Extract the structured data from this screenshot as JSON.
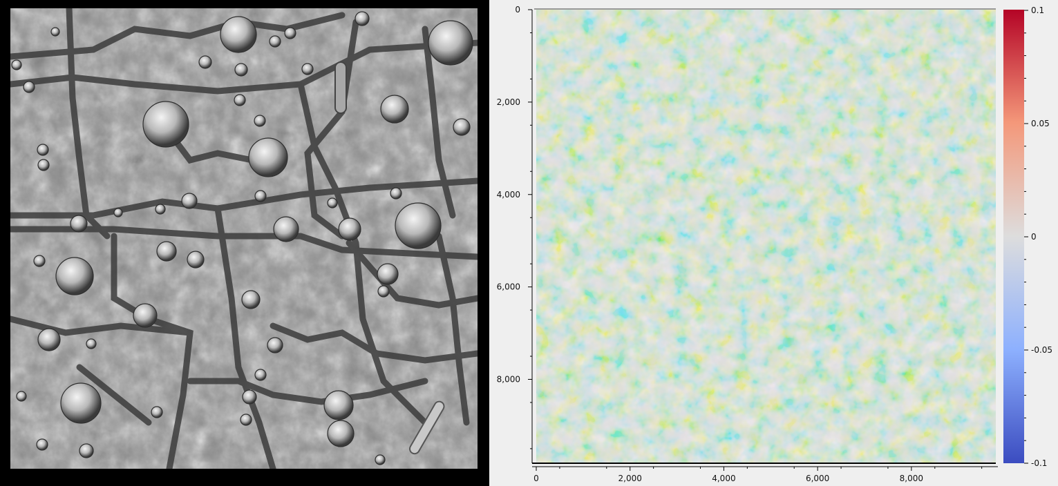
{
  "left_image": {
    "description_kind": "grayscale-shaded-relief",
    "icon": "terrain-relief-image"
  },
  "plot": {
    "xticks": [
      "0",
      "2,000",
      "4,000",
      "6,000",
      "8,000"
    ],
    "yticks": [
      "0",
      "2,000",
      "4,000",
      "6,000",
      "8,000"
    ],
    "xrange": [
      0,
      9800
    ],
    "yrange": [
      0,
      9800
    ],
    "colormap": "coolwarm",
    "colors": {
      "low": "#3b4cc0",
      "mid": "#dddddd",
      "high": "#b40426"
    }
  },
  "colorbar": {
    "ticks": [
      "0.1",
      "0.05",
      "0",
      "-0.05",
      "-0.1"
    ],
    "range": [
      -0.1,
      0.1
    ]
  }
}
